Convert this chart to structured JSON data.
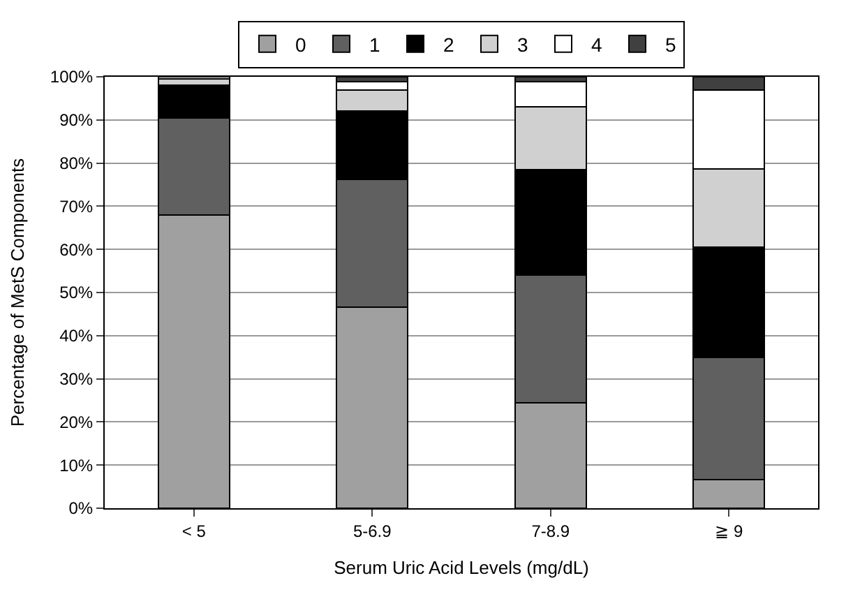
{
  "chart_data": {
    "type": "bar",
    "stacked": true,
    "xlabel": "Serum Uric Acid Levels (mg/dL)",
    "ylabel": "Percentage of MetS Components",
    "categories": [
      "< 5",
      "5-6.9",
      "7-8.9",
      "≧ 9"
    ],
    "series": [
      {
        "name": "0",
        "color": "#a0a0a0",
        "values": [
          68,
          46.6,
          24.4,
          6.7
        ]
      },
      {
        "name": "1",
        "color": "#606060",
        "values": [
          22.5,
          29.6,
          29.6,
          28.3
        ]
      },
      {
        "name": "2",
        "color": "#000000",
        "values": [
          7.5,
          15.8,
          24.4,
          25.5
        ]
      },
      {
        "name": "3",
        "color": "#d0d0d0",
        "values": [
          1.5,
          5,
          14.6,
          18.2
        ]
      },
      {
        "name": "4",
        "color": "#ffffff",
        "values": [
          0.5,
          1.8,
          5.8,
          18.3
        ]
      },
      {
        "name": "5",
        "color": "#404040",
        "values": [
          null,
          1.2,
          1.2,
          3.0
        ]
      }
    ],
    "ylim": [
      0,
      100
    ],
    "yticks": [
      {
        "value": 0,
        "label": "0%"
      },
      {
        "value": 10,
        "label": "10%"
      },
      {
        "value": 20,
        "label": "20%"
      },
      {
        "value": 30,
        "label": "30%"
      },
      {
        "value": 40,
        "label": "40%"
      },
      {
        "value": 50,
        "label": "50%"
      },
      {
        "value": 60,
        "label": "60%"
      },
      {
        "value": 70,
        "label": "70%"
      },
      {
        "value": 80,
        "label": "80%"
      },
      {
        "value": 90,
        "label": "90%"
      },
      {
        "value": 100,
        "label": "100%"
      }
    ],
    "grid": "y",
    "legend": "top"
  }
}
